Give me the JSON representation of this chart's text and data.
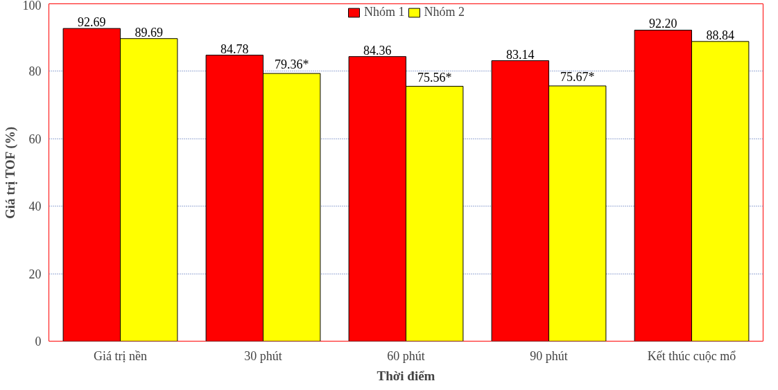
{
  "chart_data": {
    "type": "bar",
    "xlabel": "Thời điểm",
    "ylabel": "Giá trị TOF (%)",
    "categories": [
      "Giá trị nền",
      "30 phút",
      "60 phút",
      "90 phút",
      "Kết thúc cuộc mổ"
    ],
    "series": [
      {
        "name": "Nhóm 1",
        "color": "#ff0000",
        "values": [
          92.69,
          84.78,
          84.36,
          83.14,
          92.2
        ],
        "value_labels": [
          "92.69",
          "84.78",
          "84.36",
          "83.14",
          "92.20"
        ]
      },
      {
        "name": "Nhóm 2",
        "color": "#ffff00",
        "values": [
          89.69,
          79.36,
          75.56,
          75.67,
          88.84
        ],
        "value_labels": [
          "89.69",
          "79.36*",
          "75.56*",
          "75.67*",
          "88.84"
        ]
      }
    ],
    "ylim": [
      0,
      100
    ],
    "yticks": [
      0,
      20,
      40,
      60,
      80,
      100
    ],
    "grid": "y",
    "legend": "top"
  }
}
